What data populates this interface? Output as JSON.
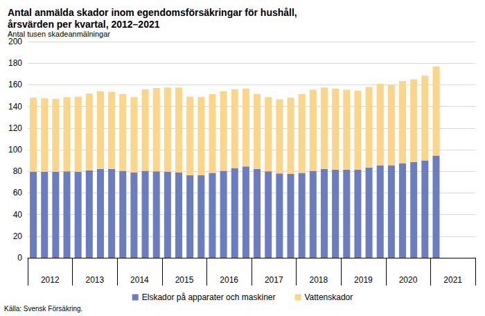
{
  "chart_data": {
    "type": "bar",
    "title": "Antal anmälda skador inom egendomsförsäkringar för hushåll,\nårsvärden per kvartal, 2012–2021",
    "subtitle": "Antal tusen skadeanmälningar",
    "source": "Källa: Svensk Försäkring.",
    "stacked": true,
    "grid": true,
    "legend": "bottom",
    "categories": [
      null,
      "2012",
      null,
      null,
      null,
      "2013",
      null,
      null,
      null,
      "2014",
      null,
      null,
      null,
      "2015",
      null,
      null,
      null,
      "2016",
      null,
      null,
      null,
      "2017",
      null,
      null,
      null,
      "2018",
      null,
      null,
      null,
      "2019",
      null,
      null,
      null,
      "2020",
      null,
      null,
      null,
      "2021",
      null,
      null
    ],
    "series": [
      {
        "name": "Elskador på apparater och maskiner",
        "color": "#6b7dbf",
        "values": [
          79.5,
          79.5,
          79.5,
          80,
          79.5,
          81,
          82,
          82,
          80.5,
          79,
          80.5,
          80,
          79.5,
          79,
          76.5,
          76.5,
          78.5,
          80.5,
          83,
          84.5,
          82,
          80,
          78,
          77.5,
          78.5,
          80.5,
          82,
          81.5,
          81.5,
          81.5,
          83.5,
          85.5,
          85.5,
          87.5,
          88.5,
          90,
          94.5,
          null,
          null,
          null
        ]
      },
      {
        "name": "Vattenskador",
        "color": "#fbd58a",
        "values": [
          68.5,
          68,
          67.5,
          68.5,
          69.5,
          71,
          72,
          71.5,
          71,
          69.5,
          75.5,
          77,
          78,
          78.5,
          72.5,
          72,
          73,
          73.5,
          73,
          72,
          69.5,
          68.5,
          68.5,
          70.5,
          73,
          75,
          75.5,
          75,
          74,
          73,
          74.5,
          75.5,
          74.5,
          76,
          76.5,
          78.5,
          82.5,
          null,
          null,
          null
        ]
      }
    ],
    "ylim": [
      0,
      200
    ],
    "yticks": [
      0,
      20,
      40,
      60,
      80,
      100,
      120,
      140,
      160,
      180,
      200
    ]
  }
}
